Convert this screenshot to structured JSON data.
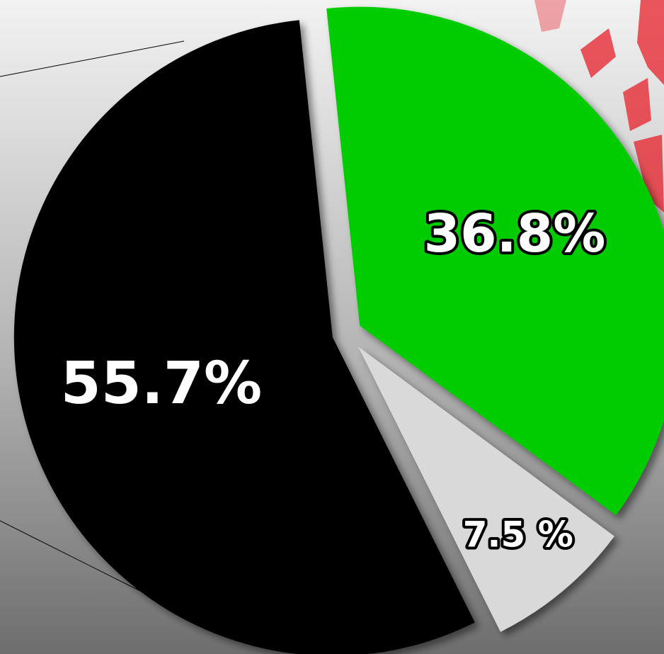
{
  "chart_data": {
    "type": "pie",
    "values": [
      36.8,
      7.5,
      55.7
    ],
    "value_labels": [
      "36.8%",
      "7.5 %",
      "55.7%"
    ],
    "colors": [
      "#00cc00",
      "#d9d9d9",
      "#000000"
    ]
  }
}
